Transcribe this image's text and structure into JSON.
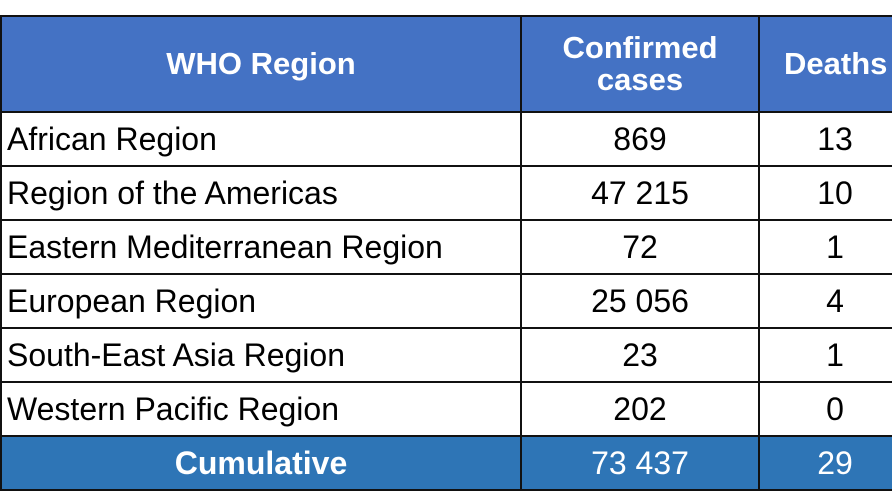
{
  "table": {
    "headers": {
      "region": "WHO Region",
      "cases_line1": "Confirmed",
      "cases_line2": "cases",
      "deaths": "Deaths"
    },
    "rows": [
      {
        "region": "African Region",
        "cases": "869",
        "deaths": "13"
      },
      {
        "region": "Region of the Americas",
        "cases": "47 215",
        "deaths": "10"
      },
      {
        "region": "Eastern Mediterranean Region",
        "cases": "72",
        "deaths": "1"
      },
      {
        "region": "European Region",
        "cases": "25 056",
        "deaths": "4"
      },
      {
        "region": "South-East Asia Region",
        "cases": "23",
        "deaths": "1"
      },
      {
        "region": "Western Pacific Region",
        "cases": "202",
        "deaths": "0"
      }
    ],
    "total": {
      "label": "Cumulative",
      "cases": "73 437",
      "deaths": "29"
    }
  },
  "colors": {
    "header_bg": "#4472c4",
    "total_bg": "#2e75b6",
    "header_text": "#ffffff",
    "border": "#111111"
  }
}
